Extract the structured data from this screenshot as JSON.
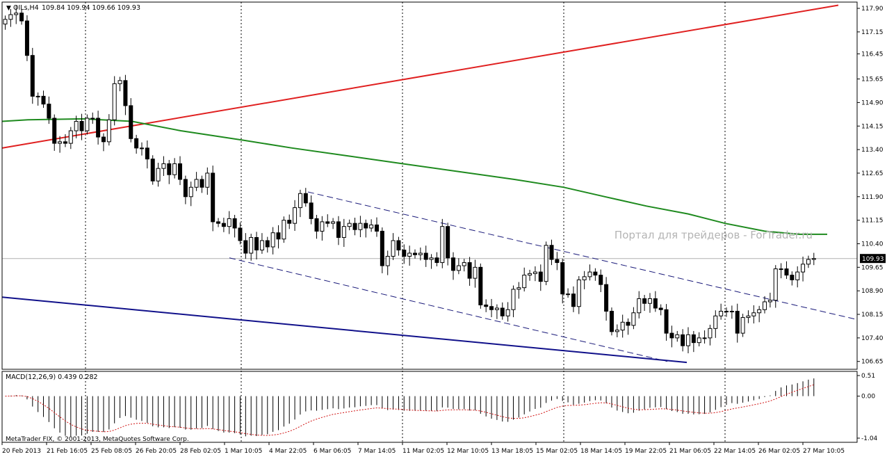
{
  "header": {
    "symbol_label": "OILs,H4",
    "ohlc": "109.84 109.94 109.66 109.93"
  },
  "watermark": "Портал для трейдеров - ForTrader.ru",
  "copyright": "MetaTrader FIX, © 2001-2013, MetaQuotes Software Corp.",
  "colors": {
    "background": "#ffffff",
    "frame": "#000000",
    "trend_red": "#e02020",
    "ma_green": "#1e8a1e",
    "trend_blue": "#10108a",
    "channel": "#1a1a7a",
    "signal": "#d01010",
    "watermark": "#b4b4b4"
  },
  "current_price": "109.93",
  "chart_data": [
    {
      "type": "candlestick",
      "title": "OILs,H4",
      "ylim": [
        106.4,
        118.1
      ],
      "price_ticks": [
        "117.90",
        "117.15",
        "116.45",
        "115.65",
        "114.90",
        "114.15",
        "113.40",
        "112.65",
        "111.90",
        "111.15",
        "110.40",
        "109.65",
        "108.90",
        "108.15",
        "107.40",
        "106.65"
      ],
      "time_labels": [
        "20 Feb 2013",
        "21 Feb 16:05",
        "25 Feb 08:05",
        "26 Feb 20:05",
        "28 Feb 02:05",
        "1 Mar 10:05",
        "4 Mar 22:05",
        "6 Mar 06:05",
        "7 Mar 14:05",
        "11 Mar 02:05",
        "12 Mar 10:05",
        "13 Mar 18:05",
        "15 Mar 02:05",
        "18 Mar 14:05",
        "19 Mar 22:05",
        "21 Mar 06:05",
        "22 Mar 14:05",
        "26 Mar 02:05",
        "27 Mar 10:05"
      ],
      "closes": [
        117.55,
        117.7,
        117.75,
        117.5,
        116.4,
        115.1,
        115.1,
        114.85,
        114.4,
        113.6,
        113.65,
        113.6,
        114,
        114.3,
        114,
        114.4,
        114.4,
        113.8,
        113.65,
        114.35,
        115.5,
        115.6,
        114.8,
        113.75,
        113.45,
        113.45,
        113.1,
        112.4,
        112.8,
        112.95,
        112.6,
        112.95,
        112.45,
        111.9,
        112.2,
        112.45,
        112.2,
        112.65,
        111.1,
        111.05,
        110.95,
        111.2,
        110.9,
        110.5,
        110.1,
        110.6,
        110.2,
        110.5,
        110.3,
        110.75,
        110.55,
        111.15,
        111.05,
        111.55,
        112.0,
        111.7,
        111.2,
        110.8,
        111.1,
        111.05,
        111.1,
        110.6,
        110.95,
        111.05,
        110.85,
        111.05,
        110.9,
        111.0,
        110.8,
        109.7,
        110.0,
        110.5,
        110.2,
        110.0,
        110.1,
        110.05,
        110.1,
        109.9,
        109.95,
        109.8,
        110.95,
        109.95,
        109.55,
        109.7,
        109.8,
        109.3,
        109.65,
        108.45,
        108.4,
        108.3,
        108.35,
        108.1,
        108.3,
        108.95,
        109.0,
        109.4,
        109.45,
        109.5,
        109.2,
        110.35,
        109.9,
        109.8,
        108.8,
        108.8,
        108.4,
        109.25,
        109.35,
        109.5,
        109.4,
        109.1,
        108.25,
        107.6,
        107.65,
        107.9,
        107.8,
        108.2,
        108.65,
        108.5,
        108.65,
        108.35,
        108.3,
        107.55,
        107.4,
        107.5,
        107.15,
        107.5,
        107.25,
        107.4,
        107.4,
        107.7,
        108.1,
        108.25,
        108.25,
        108.25,
        107.55,
        108.05,
        108.1,
        108.2,
        108.3,
        108.55,
        108.6,
        109.6,
        109.6,
        109.4,
        109.25,
        109.5,
        109.75,
        109.9,
        109.93
      ]
    },
    {
      "type": "line",
      "title": "MACD(12,26,9) 0.439 0.282",
      "ylim": [
        -1.04,
        0.51
      ],
      "ticks": [
        "0.51",
        "0.00",
        "-1.04"
      ],
      "histogram_last": 0.439,
      "signal_last": 0.282
    }
  ]
}
